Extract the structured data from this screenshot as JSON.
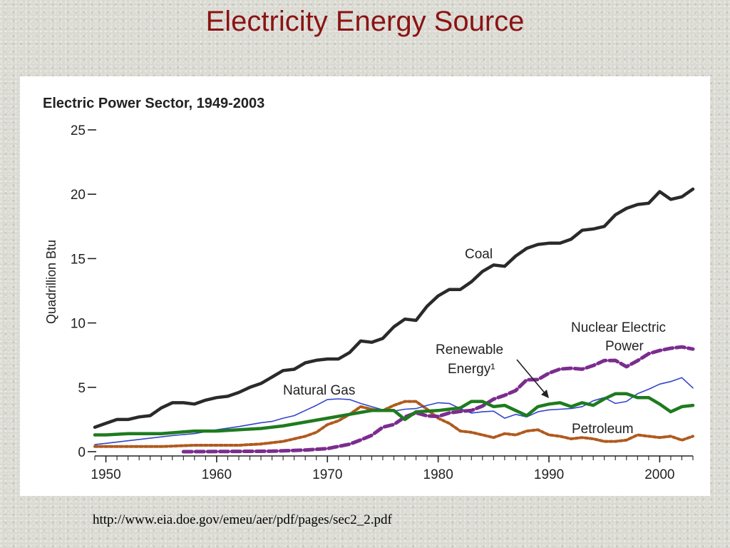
{
  "slide": {
    "title": "Electricity Energy Source",
    "source_url": "http://www.eia.doe.gov/emeu/aer/pdf/pages/sec2_2.pdf"
  },
  "chart_data": {
    "type": "line",
    "title": "Electric Power Sector, 1949-2003",
    "ylabel": "Quadrillion Btu",
    "xlabel": "",
    "xlim": [
      1949,
      2003
    ],
    "ylim": [
      0,
      25
    ],
    "x_ticks": [
      1950,
      1960,
      1970,
      1980,
      1990,
      2000
    ],
    "y_ticks": [
      0,
      5,
      10,
      15,
      20,
      25
    ],
    "grid": false,
    "legend": "none (series labeled directly on the plot)",
    "annotations": [
      "Coal",
      "Nuclear Electric",
      "Power",
      "Renewable",
      "Energy¹",
      "Natural Gas",
      "Petroleum"
    ],
    "series": [
      {
        "name": "Coal",
        "color": "#2a2a2a",
        "style": "solid-thick",
        "x": [
          1949,
          1950,
          1951,
          1952,
          1953,
          1954,
          1955,
          1956,
          1957,
          1958,
          1959,
          1960,
          1961,
          1962,
          1963,
          1964,
          1965,
          1966,
          1967,
          1968,
          1969,
          1970,
          1971,
          1972,
          1973,
          1974,
          1975,
          1976,
          1977,
          1978,
          1979,
          1980,
          1981,
          1982,
          1983,
          1984,
          1985,
          1986,
          1987,
          1988,
          1989,
          1990,
          1991,
          1992,
          1993,
          1994,
          1995,
          1996,
          1997,
          1998,
          1999,
          2000,
          2001,
          2002,
          2003
        ],
        "values": [
          1.9,
          2.2,
          2.5,
          2.5,
          2.7,
          2.8,
          3.4,
          3.8,
          3.8,
          3.7,
          4.0,
          4.2,
          4.3,
          4.6,
          5.0,
          5.3,
          5.8,
          6.3,
          6.4,
          6.9,
          7.1,
          7.2,
          7.2,
          7.7,
          8.6,
          8.5,
          8.8,
          9.7,
          10.3,
          10.2,
          11.3,
          12.1,
          12.6,
          12.6,
          13.2,
          14.0,
          14.5,
          14.4,
          15.2,
          15.8,
          16.1,
          16.2,
          16.2,
          16.5,
          17.2,
          17.3,
          17.5,
          18.4,
          18.9,
          19.2,
          19.3,
          20.2,
          19.6,
          19.8,
          20.4
        ]
      },
      {
        "name": "Nuclear Electric Power",
        "color": "#7b2d8e",
        "style": "dashed-thick",
        "x": [
          1957,
          1960,
          1965,
          1968,
          1970,
          1971,
          1972,
          1973,
          1974,
          1975,
          1976,
          1977,
          1978,
          1979,
          1980,
          1981,
          1982,
          1983,
          1984,
          1985,
          1986,
          1987,
          1988,
          1989,
          1990,
          1991,
          1992,
          1993,
          1994,
          1995,
          1996,
          1997,
          1998,
          1999,
          2000,
          2001,
          2002,
          2003
        ],
        "values": [
          0.0,
          0.01,
          0.04,
          0.13,
          0.24,
          0.41,
          0.58,
          0.91,
          1.27,
          1.9,
          2.11,
          2.7,
          3.02,
          2.78,
          2.74,
          3.01,
          3.13,
          3.2,
          3.55,
          4.08,
          4.38,
          4.75,
          5.59,
          5.6,
          6.1,
          6.42,
          6.48,
          6.41,
          6.69,
          7.08,
          7.09,
          6.6,
          7.07,
          7.61,
          7.86,
          8.03,
          8.14,
          7.97
        ]
      },
      {
        "name": "Renewable Energy",
        "color": "#1e7b1e",
        "style": "solid-thick",
        "x": [
          1949,
          1950,
          1952,
          1955,
          1958,
          1960,
          1962,
          1964,
          1966,
          1968,
          1970,
          1972,
          1974,
          1976,
          1977,
          1978,
          1980,
          1982,
          1983,
          1984,
          1985,
          1986,
          1987,
          1988,
          1989,
          1990,
          1991,
          1992,
          1993,
          1994,
          1995,
          1996,
          1997,
          1998,
          1999,
          2000,
          2001,
          2002,
          2003
        ],
        "values": [
          1.3,
          1.3,
          1.4,
          1.4,
          1.6,
          1.6,
          1.7,
          1.8,
          2.0,
          2.3,
          2.6,
          2.9,
          3.2,
          3.2,
          2.5,
          3.1,
          3.2,
          3.4,
          3.9,
          3.9,
          3.5,
          3.6,
          3.2,
          2.8,
          3.5,
          3.7,
          3.8,
          3.5,
          3.8,
          3.6,
          4.1,
          4.5,
          4.5,
          4.2,
          4.2,
          3.7,
          3.1,
          3.5,
          3.6
        ]
      },
      {
        "name": "Natural Gas",
        "color": "#3344cc",
        "style": "solid-thin",
        "x": [
          1949,
          1950,
          1952,
          1954,
          1956,
          1958,
          1960,
          1962,
          1964,
          1965,
          1966,
          1967,
          1968,
          1969,
          1970,
          1971,
          1972,
          1973,
          1974,
          1975,
          1976,
          1977,
          1978,
          1979,
          1980,
          1981,
          1982,
          1983,
          1984,
          1985,
          1986,
          1987,
          1988,
          1989,
          1990,
          1991,
          1992,
          1993,
          1994,
          1995,
          1996,
          1997,
          1998,
          1999,
          2000,
          2001,
          2002,
          2003
        ],
        "values": [
          0.55,
          0.65,
          0.85,
          1.05,
          1.25,
          1.4,
          1.7,
          1.95,
          2.25,
          2.35,
          2.6,
          2.8,
          3.2,
          3.6,
          4.05,
          4.1,
          4.05,
          3.75,
          3.5,
          3.25,
          3.15,
          3.3,
          3.35,
          3.6,
          3.8,
          3.75,
          3.35,
          3.0,
          3.1,
          3.15,
          2.6,
          2.9,
          2.7,
          3.1,
          3.25,
          3.3,
          3.35,
          3.5,
          3.95,
          4.2,
          3.75,
          3.9,
          4.5,
          4.85,
          5.25,
          5.45,
          5.75,
          4.95
        ]
      },
      {
        "name": "Petroleum",
        "color": "#b05a1e",
        "style": "dotted-thick",
        "x": [
          1949,
          1950,
          1952,
          1955,
          1958,
          1960,
          1962,
          1964,
          1966,
          1967,
          1968,
          1969,
          1970,
          1971,
          1972,
          1973,
          1974,
          1975,
          1976,
          1977,
          1978,
          1979,
          1980,
          1981,
          1982,
          1983,
          1984,
          1985,
          1986,
          1987,
          1988,
          1989,
          1990,
          1991,
          1992,
          1993,
          1994,
          1995,
          1996,
          1997,
          1998,
          1999,
          2000,
          2001,
          2002,
          2003
        ],
        "values": [
          0.4,
          0.4,
          0.4,
          0.4,
          0.5,
          0.5,
          0.5,
          0.6,
          0.8,
          1.0,
          1.2,
          1.5,
          2.1,
          2.4,
          2.9,
          3.5,
          3.3,
          3.2,
          3.6,
          3.9,
          3.9,
          3.3,
          2.6,
          2.2,
          1.6,
          1.5,
          1.3,
          1.1,
          1.4,
          1.3,
          1.6,
          1.7,
          1.3,
          1.2,
          1.0,
          1.1,
          1.0,
          0.8,
          0.8,
          0.9,
          1.3,
          1.2,
          1.1,
          1.2,
          0.9,
          1.2
        ]
      }
    ]
  }
}
